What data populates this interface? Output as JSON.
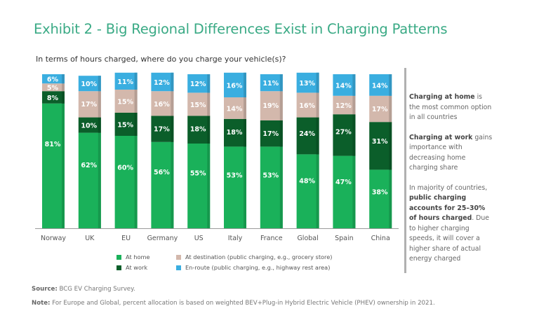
{
  "title": "Exhibit 2 - Big Regional Differences Exist in Charging Patterns",
  "subtitle": "In terms of hours charged, where do you charge your vehicle(s)?",
  "notes": [
    {
      "bold": "Charging at home",
      "rest": " is the most common option in all countries"
    },
    {
      "bold": "Charging at work",
      "rest": " gains importance with decreasing home charging share"
    },
    {
      "pre": "In majority of countries, ",
      "bold": "public charging accounts for 25–30% of hours charged",
      "rest": ". Due to higher charging speeds, it will cover a higher share of actual energy charged"
    }
  ],
  "footer": {
    "source_label": "Source:",
    "source_text": " BCG EV Charging Survey.",
    "note_label": "Note:",
    "note_text": " For Europe and Global, percent allocation is based on weighted BEV+Plug-in Hybrid Electric Vehicle (PHEV) ownership in 2021."
  },
  "chart_data": {
    "type": "bar",
    "stacked": true,
    "title": "In terms of hours charged, where do you charge your vehicle(s)?",
    "xlabel": "",
    "ylabel": "",
    "ylim": [
      0,
      100
    ],
    "unit": "%",
    "legend_position": "bottom",
    "categories": [
      "Norway",
      "UK",
      "EU",
      "Germany",
      "US",
      "Italy",
      "France",
      "Global",
      "Spain",
      "China"
    ],
    "series": [
      {
        "name": "At home",
        "color": "#1ab15a",
        "values": [
          81,
          62,
          60,
          56,
          55,
          53,
          53,
          48,
          47,
          38
        ]
      },
      {
        "name": "At work",
        "color": "#0b5e2a",
        "values": [
          8,
          10,
          15,
          17,
          18,
          18,
          17,
          24,
          27,
          31
        ]
      },
      {
        "name": "At destination (public charging, e.g., grocery store)",
        "color": "#d3b8ac",
        "values": [
          5,
          17,
          15,
          16,
          15,
          14,
          19,
          16,
          12,
          17
        ]
      },
      {
        "name": "En-route (public charging, e.g., highway rest area)",
        "color": "#3aaee0",
        "values": [
          6,
          10,
          11,
          12,
          12,
          16,
          11,
          13,
          14,
          14
        ]
      }
    ],
    "legend_order": [
      0,
      2,
      1,
      3
    ]
  }
}
